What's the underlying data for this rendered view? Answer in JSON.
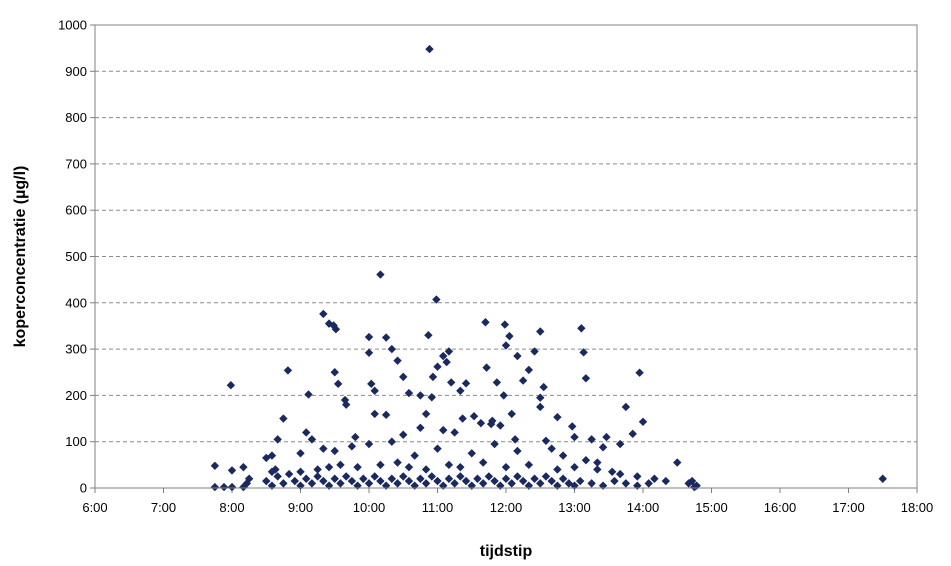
{
  "chart_data": {
    "type": "scatter",
    "title": "",
    "xlabel": "tijdstip",
    "ylabel": "koperconcentratie (µg/l)",
    "xlim": [
      "6:00",
      "18:00"
    ],
    "ylim": [
      0,
      1000
    ],
    "x_ticks": [
      "6:00",
      "7:00",
      "8:00",
      "9:00",
      "10:00",
      "11:00",
      "12:00",
      "13:00",
      "14:00",
      "15:00",
      "16:00",
      "17:00",
      "18:00"
    ],
    "y_ticks": [
      "0",
      "100",
      "200",
      "300",
      "400",
      "500",
      "600",
      "700",
      "800",
      "900",
      "1000"
    ],
    "grid": "horizontal dashed",
    "legend": "none",
    "marker_color": "#1a2a5e",
    "marker": "diamond",
    "series": [
      {
        "points": [
          [
            "10:53",
            948
          ],
          [
            "10:10",
            461
          ],
          [
            "10:59",
            407
          ],
          [
            "9:20",
            376
          ],
          [
            "9:25",
            355
          ],
          [
            "9:29",
            351
          ],
          [
            "9:31",
            343
          ],
          [
            "10:00",
            326
          ],
          [
            "10:15",
            325
          ],
          [
            "10:52",
            330
          ],
          [
            "11:42",
            358
          ],
          [
            "11:59",
            353
          ],
          [
            "12:03",
            328
          ],
          [
            "12:30",
            338
          ],
          [
            "13:06",
            345
          ],
          [
            "12:00",
            308
          ],
          [
            "10:20",
            300
          ],
          [
            "11:10",
            295
          ],
          [
            "11:05",
            285
          ],
          [
            "12:10",
            285
          ],
          [
            "12:25",
            295
          ],
          [
            "13:08",
            293
          ],
          [
            "10:00",
            292
          ],
          [
            "10:25",
            275
          ],
          [
            "11:08",
            272
          ],
          [
            "11:00",
            262
          ],
          [
            "11:43",
            260
          ],
          [
            "12:20",
            255
          ],
          [
            "8:49",
            254
          ],
          [
            "9:30",
            250
          ],
          [
            "10:30",
            240
          ],
          [
            "10:56",
            240
          ],
          [
            "13:10",
            237
          ],
          [
            "12:15",
            232
          ],
          [
            "11:12",
            228
          ],
          [
            "11:25",
            226
          ],
          [
            "11:52",
            228
          ],
          [
            "12:33",
            218
          ],
          [
            "10:02",
            225
          ],
          [
            "7:59",
            222
          ],
          [
            "13:57",
            249
          ],
          [
            "9:33",
            225
          ],
          [
            "10:05",
            210
          ],
          [
            "10:35",
            205
          ],
          [
            "11:20",
            210
          ],
          [
            "9:07",
            202
          ],
          [
            "9:39",
            190
          ],
          [
            "9:40",
            180
          ],
          [
            "10:45",
            200
          ],
          [
            "10:55",
            196
          ],
          [
            "11:58",
            200
          ],
          [
            "12:30",
            195
          ],
          [
            "13:45",
            175
          ],
          [
            "14:00",
            143
          ],
          [
            "13:51",
            117
          ],
          [
            "10:05",
            160
          ],
          [
            "10:15",
            158
          ],
          [
            "10:50",
            160
          ],
          [
            "11:22",
            150
          ],
          [
            "11:32",
            155
          ],
          [
            "12:05",
            160
          ],
          [
            "12:45",
            153
          ],
          [
            "12:30",
            175
          ],
          [
            "11:48",
            145
          ],
          [
            "11:38",
            140
          ],
          [
            "11:47",
            138
          ],
          [
            "11:55",
            135
          ],
          [
            "10:45",
            130
          ],
          [
            "12:58",
            133
          ],
          [
            "13:00",
            110
          ],
          [
            "13:15",
            105
          ],
          [
            "13:40",
            95
          ],
          [
            "8:45",
            150
          ],
          [
            "9:05",
            120
          ],
          [
            "9:00",
            75
          ],
          [
            "9:10",
            105
          ],
          [
            "8:40",
            105
          ],
          [
            "9:48",
            110
          ],
          [
            "10:30",
            115
          ],
          [
            "11:15",
            120
          ],
          [
            "11:05",
            125
          ],
          [
            "12:08",
            105
          ],
          [
            "12:35",
            102
          ],
          [
            "13:28",
            110
          ],
          [
            "13:25",
            88
          ],
          [
            "8:30",
            65
          ],
          [
            "8:35",
            70
          ],
          [
            "9:20",
            85
          ],
          [
            "9:30",
            80
          ],
          [
            "9:45",
            90
          ],
          [
            "10:00",
            95
          ],
          [
            "10:20",
            100
          ],
          [
            "10:40",
            70
          ],
          [
            "11:00",
            85
          ],
          [
            "11:30",
            75
          ],
          [
            "11:50",
            95
          ],
          [
            "12:10",
            80
          ],
          [
            "12:40",
            85
          ],
          [
            "12:50",
            70
          ],
          [
            "13:10",
            60
          ],
          [
            "13:20",
            55
          ],
          [
            "7:45",
            48
          ],
          [
            "8:00",
            38
          ],
          [
            "8:10",
            45
          ],
          [
            "8:35",
            35
          ],
          [
            "8:38",
            40
          ],
          [
            "8:50",
            30
          ],
          [
            "9:00",
            35
          ],
          [
            "9:15",
            40
          ],
          [
            "9:25",
            45
          ],
          [
            "9:35",
            50
          ],
          [
            "9:50",
            45
          ],
          [
            "10:10",
            50
          ],
          [
            "10:25",
            55
          ],
          [
            "10:35",
            45
          ],
          [
            "10:50",
            40
          ],
          [
            "11:10",
            50
          ],
          [
            "11:20",
            45
          ],
          [
            "11:40",
            55
          ],
          [
            "12:00",
            45
          ],
          [
            "12:20",
            50
          ],
          [
            "12:45",
            40
          ],
          [
            "13:00",
            45
          ],
          [
            "13:20",
            40
          ],
          [
            "13:33",
            35
          ],
          [
            "13:40",
            30
          ],
          [
            "13:55",
            25
          ],
          [
            "14:10",
            20
          ],
          [
            "14:30",
            55
          ],
          [
            "14:43",
            15
          ],
          [
            "7:45",
            2
          ],
          [
            "7:53",
            2
          ],
          [
            "8:00",
            2
          ],
          [
            "8:10",
            2
          ],
          [
            "8:13",
            10
          ],
          [
            "8:15",
            20
          ],
          [
            "8:30",
            15
          ],
          [
            "8:35",
            5
          ],
          [
            "8:40",
            25
          ],
          [
            "8:45",
            10
          ],
          [
            "8:55",
            15
          ],
          [
            "9:00",
            5
          ],
          [
            "9:05",
            20
          ],
          [
            "9:10",
            10
          ],
          [
            "9:15",
            25
          ],
          [
            "9:20",
            15
          ],
          [
            "9:25",
            5
          ],
          [
            "9:30",
            20
          ],
          [
            "9:35",
            10
          ],
          [
            "9:40",
            25
          ],
          [
            "9:45",
            15
          ],
          [
            "9:50",
            5
          ],
          [
            "9:55",
            20
          ],
          [
            "10:00",
            10
          ],
          [
            "10:05",
            25
          ],
          [
            "10:10",
            15
          ],
          [
            "10:15",
            5
          ],
          [
            "10:20",
            20
          ],
          [
            "10:25",
            10
          ],
          [
            "10:30",
            25
          ],
          [
            "10:35",
            15
          ],
          [
            "10:40",
            5
          ],
          [
            "10:45",
            20
          ],
          [
            "10:50",
            10
          ],
          [
            "10:55",
            25
          ],
          [
            "11:00",
            15
          ],
          [
            "11:05",
            5
          ],
          [
            "11:10",
            20
          ],
          [
            "11:15",
            10
          ],
          [
            "11:20",
            25
          ],
          [
            "11:25",
            15
          ],
          [
            "11:30",
            5
          ],
          [
            "11:35",
            20
          ],
          [
            "11:40",
            10
          ],
          [
            "11:45",
            25
          ],
          [
            "11:50",
            15
          ],
          [
            "11:55",
            5
          ],
          [
            "12:00",
            20
          ],
          [
            "12:05",
            10
          ],
          [
            "12:10",
            25
          ],
          [
            "12:15",
            15
          ],
          [
            "12:20",
            5
          ],
          [
            "12:25",
            20
          ],
          [
            "12:30",
            10
          ],
          [
            "12:35",
            25
          ],
          [
            "12:40",
            15
          ],
          [
            "12:45",
            5
          ],
          [
            "12:50",
            20
          ],
          [
            "12:55",
            10
          ],
          [
            "13:00",
            5
          ],
          [
            "13:05",
            15
          ],
          [
            "13:15",
            10
          ],
          [
            "13:25",
            5
          ],
          [
            "13:35",
            15
          ],
          [
            "13:45",
            10
          ],
          [
            "13:55",
            5
          ],
          [
            "14:05",
            10
          ],
          [
            "14:20",
            15
          ],
          [
            "14:40",
            10
          ],
          [
            "14:45",
            2
          ],
          [
            "14:47",
            5
          ],
          [
            "17:30",
            20
          ]
        ]
      }
    ]
  }
}
